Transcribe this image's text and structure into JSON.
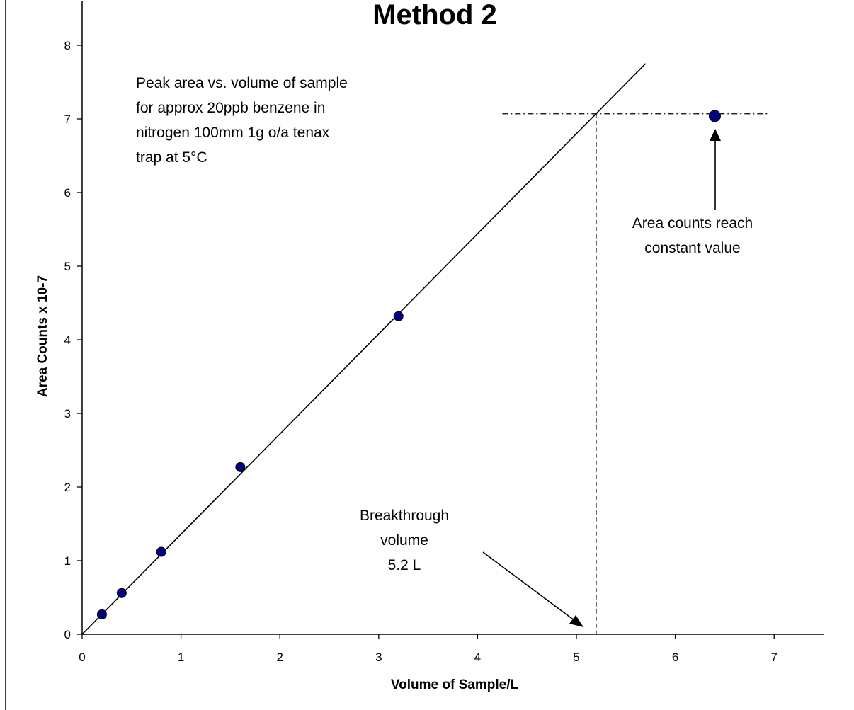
{
  "chart_data": {
    "type": "scatter",
    "title": "Method 2",
    "xlabel": "Volume of Sample/L",
    "ylabel": "Area Counts x 10-7",
    "xlim": [
      0,
      7.5
    ],
    "ylim": [
      0,
      8.6
    ],
    "x_ticks": [
      "0",
      "1",
      "2",
      "3",
      "4",
      "5",
      "6",
      "7"
    ],
    "y_ticks": [
      "0",
      "1",
      "2",
      "3",
      "4",
      "5",
      "6",
      "7",
      "8"
    ],
    "grid": false,
    "legend": "none",
    "series": [
      {
        "x": [
          0.2,
          0.4,
          0.8,
          1.6,
          3.2,
          6.4
        ],
        "y": [
          0.27,
          0.56,
          1.12,
          2.27,
          4.32,
          7.04
        ]
      }
    ],
    "fit_line": {
      "slope": 1.36,
      "intercept": 0,
      "x_range": [
        0,
        5.7
      ]
    },
    "breakthrough_volume": 5.2,
    "plateau_value": 7.07,
    "plateau_x_range": [
      4.25,
      6.95
    ],
    "point_color": "#000080",
    "annotations": {
      "description": [
        "Peak area vs. volume of sample",
        "for approx 20ppb benzene in",
        "nitrogen 100mm 1g o/a tenax",
        "trap at 5°C"
      ],
      "breakthrough": [
        "Breakthrough",
        "volume",
        "5.2 L"
      ],
      "constant": [
        "Area counts reach",
        "constant value"
      ]
    }
  }
}
